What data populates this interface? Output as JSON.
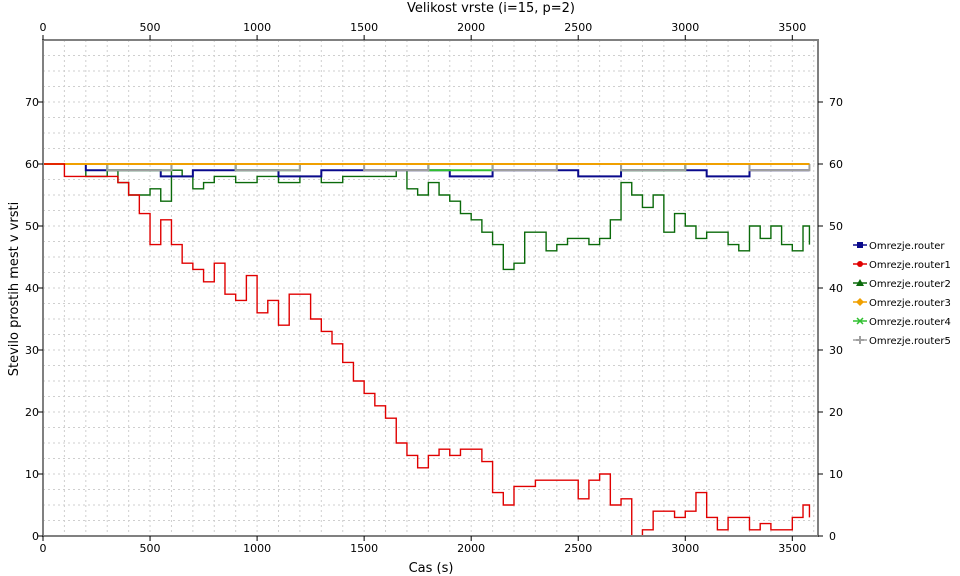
{
  "chart_data": {
    "type": "line",
    "title": "Velikost vrste (i=15, p=2)",
    "xlabel": "Cas (s)",
    "ylabel": "Stevilo prostih mest v vrsti",
    "xlim": [
      0,
      3620
    ],
    "ylim": [
      0,
      80
    ],
    "x_ticks": [
      0,
      500,
      1000,
      1500,
      2000,
      2500,
      3000,
      3500
    ],
    "y_ticks": [
      0,
      10,
      20,
      30,
      40,
      50,
      60,
      70
    ],
    "grid": true,
    "legend_position": "right",
    "series": [
      {
        "name": "Omrezje.router",
        "color": "#0a0a8c",
        "marker": "square",
        "x": [
          0,
          200,
          400,
          550,
          700,
          900,
          1100,
          1300,
          1500,
          1700,
          1900,
          2100,
          2300,
          2500,
          2700,
          2900,
          3100,
          3300,
          3500,
          3580
        ],
        "values": [
          60,
          59,
          59,
          58,
          59,
          59,
          58,
          59,
          59,
          59,
          58,
          59,
          59,
          58,
          59,
          59,
          58,
          59,
          59,
          59
        ]
      },
      {
        "name": "Omrezje.router1",
        "color": "#e00000",
        "marker": "circle",
        "x": [
          0,
          100,
          200,
          300,
          350,
          400,
          450,
          500,
          550,
          600,
          650,
          700,
          750,
          800,
          850,
          900,
          950,
          1000,
          1050,
          1100,
          1150,
          1200,
          1250,
          1300,
          1350,
          1400,
          1450,
          1500,
          1550,
          1600,
          1650,
          1700,
          1750,
          1800,
          1850,
          1900,
          1950,
          2000,
          2050,
          2100,
          2150,
          2200,
          2250,
          2300,
          2350,
          2400,
          2450,
          2500,
          2550,
          2600,
          2650,
          2700,
          2750,
          2800,
          2850,
          2900,
          2950,
          3000,
          3050,
          3100,
          3150,
          3200,
          3250,
          3300,
          3350,
          3400,
          3450,
          3500,
          3550,
          3580
        ],
        "values": [
          60,
          58,
          58,
          58,
          57,
          55,
          52,
          47,
          51,
          47,
          44,
          43,
          41,
          44,
          39,
          38,
          42,
          36,
          38,
          34,
          39,
          39,
          35,
          33,
          31,
          28,
          25,
          23,
          21,
          19,
          15,
          13,
          11,
          13,
          14,
          13,
          14,
          14,
          12,
          7,
          5,
          8,
          8,
          9,
          9,
          9,
          9,
          6,
          9,
          10,
          5,
          6,
          0,
          1,
          4,
          4,
          3,
          4,
          7,
          3,
          1,
          3,
          3,
          1,
          2,
          1,
          1,
          3,
          5,
          3
        ]
      },
      {
        "name": "Omrezje.router2",
        "color": "#0a6a0a",
        "marker": "triangle",
        "x": [
          0,
          200,
          300,
          350,
          400,
          450,
          500,
          550,
          600,
          650,
          700,
          750,
          800,
          850,
          900,
          1000,
          1100,
          1200,
          1300,
          1400,
          1500,
          1600,
          1650,
          1700,
          1750,
          1800,
          1850,
          1900,
          1950,
          2000,
          2050,
          2100,
          2150,
          2200,
          2250,
          2300,
          2350,
          2400,
          2450,
          2500,
          2550,
          2600,
          2650,
          2700,
          2750,
          2800,
          2850,
          2900,
          2950,
          3000,
          3050,
          3100,
          3150,
          3200,
          3250,
          3300,
          3350,
          3400,
          3450,
          3500,
          3550,
          3580
        ],
        "values": [
          60,
          58,
          59,
          57,
          55,
          55,
          56,
          54,
          59,
          58,
          56,
          57,
          58,
          58,
          57,
          58,
          57,
          58,
          57,
          58,
          58,
          58,
          59,
          56,
          55,
          57,
          55,
          54,
          52,
          51,
          49,
          47,
          43,
          44,
          49,
          49,
          46,
          47,
          48,
          48,
          47,
          48,
          51,
          57,
          55,
          53,
          55,
          49,
          52,
          50,
          48,
          49,
          49,
          47,
          46,
          50,
          48,
          50,
          47,
          46,
          50,
          47
        ]
      },
      {
        "name": "Omrezje.router3",
        "color": "#f0a000",
        "marker": "diamond",
        "x": [
          0,
          300,
          600,
          900,
          1200,
          1500,
          1800,
          2100,
          2400,
          2700,
          3000,
          3300,
          3580
        ],
        "values": [
          60,
          60,
          60,
          60,
          60,
          60,
          60,
          60,
          60,
          60,
          60,
          60,
          60
        ]
      },
      {
        "name": "Omrezje.router4",
        "color": "#30c030",
        "marker": "x",
        "x": [
          0,
          300,
          600,
          900,
          1200,
          1500,
          1800,
          2100,
          2400,
          2700,
          3000,
          3300,
          3580
        ],
        "values": [
          60,
          59,
          60,
          59,
          60,
          60,
          59,
          60,
          60,
          59,
          60,
          60,
          60
        ]
      },
      {
        "name": "Omrezje.router5",
        "color": "#a0a0a0",
        "marker": "plus",
        "x": [
          0,
          300,
          600,
          900,
          1200,
          1500,
          1800,
          2100,
          2400,
          2700,
          3000,
          3300,
          3580
        ],
        "values": [
          60,
          59,
          60,
          59,
          60,
          59,
          60,
          59,
          60,
          59,
          60,
          59,
          60
        ]
      }
    ]
  }
}
